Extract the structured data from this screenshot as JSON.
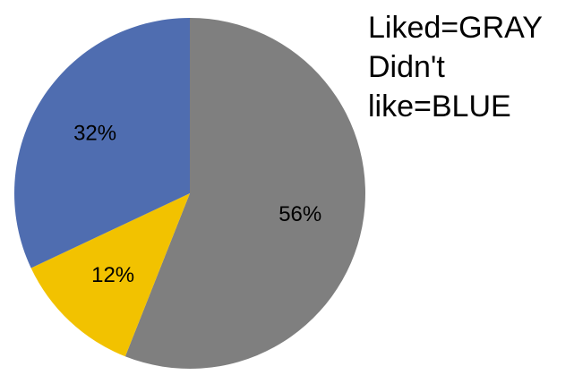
{
  "chart_data": {
    "type": "pie",
    "title": "",
    "categories": [
      "",
      "",
      ""
    ],
    "values": [
      56,
      12,
      32
    ],
    "data_labels": [
      "56%",
      "12%",
      "32%"
    ],
    "colors": [
      "#7f7f7f",
      "#f2c200",
      "#4f6db0"
    ],
    "start": "12 o'clock",
    "direction": "clockwise",
    "legend": "none"
  },
  "note": {
    "lines": [
      "Liked=GRAY",
      "Didn't",
      "like=BLUE"
    ]
  }
}
